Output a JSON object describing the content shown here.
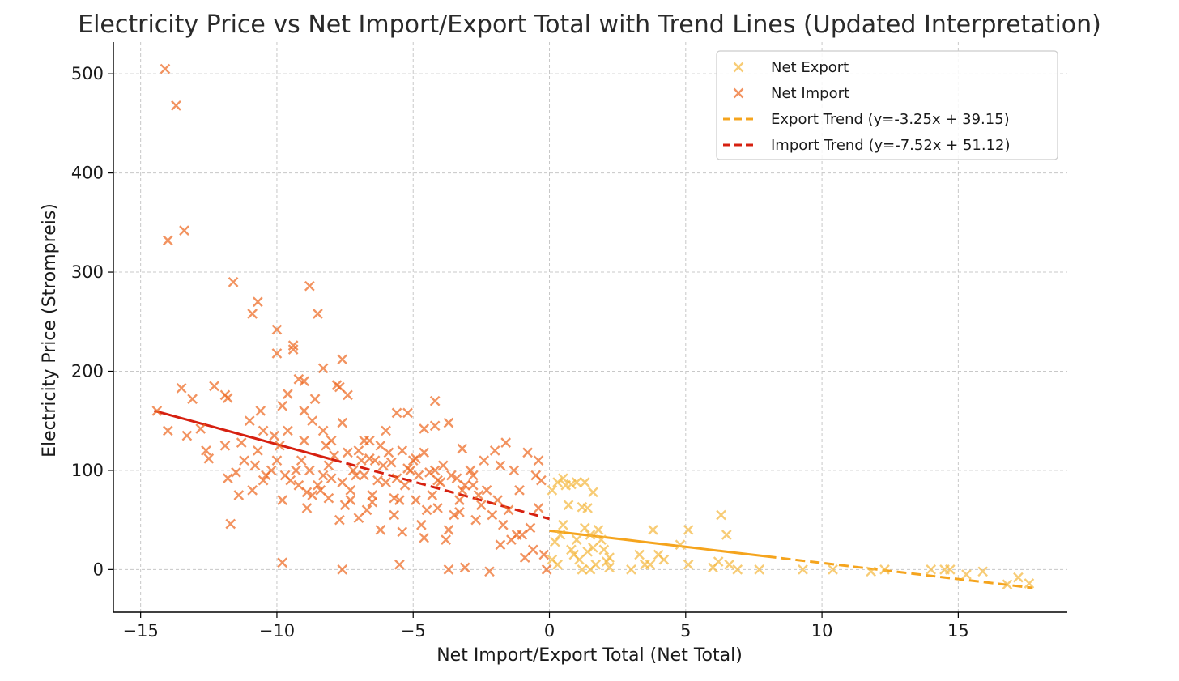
{
  "chart_data": {
    "type": "scatter",
    "title": "Electricity Price vs Net Import/Export Total with Trend Lines (Updated Interpretation)",
    "xlabel": "Net Import/Export Total (Net Total)",
    "ylabel": "Electricity Price (Strompreis)",
    "xlim": [
      -16,
      19
    ],
    "ylim": [
      -43,
      532
    ],
    "xticks": [
      -15,
      -10,
      -5,
      0,
      5,
      10,
      15
    ],
    "yticks": [
      0,
      100,
      200,
      300,
      400,
      500
    ],
    "xtick_labels": [
      "−15",
      "−10",
      "−5",
      "0",
      "5",
      "10",
      "15"
    ],
    "ytick_labels": [
      "0",
      "100",
      "200",
      "300",
      "400",
      "500"
    ],
    "grid": true,
    "legend_position": "top-right",
    "series": [
      {
        "name": "Net Export",
        "kind": "scatter",
        "marker": "x",
        "color": "#f5b942",
        "points": [
          [
            0.1,
            80
          ],
          [
            0.3,
            88
          ],
          [
            0.5,
            92
          ],
          [
            0.6,
            85
          ],
          [
            0.8,
            86
          ],
          [
            1.0,
            88
          ],
          [
            0.7,
            65
          ],
          [
            1.2,
            63
          ],
          [
            1.3,
            88
          ],
          [
            1.4,
            62
          ],
          [
            1.6,
            78
          ],
          [
            0.2,
            28
          ],
          [
            0.4,
            35
          ],
          [
            0.1,
            10
          ],
          [
            0.3,
            5
          ],
          [
            0.5,
            45
          ],
          [
            0.9,
            15
          ],
          [
            1.1,
            10
          ],
          [
            1.4,
            18
          ],
          [
            1.3,
            42
          ],
          [
            1.5,
            35
          ],
          [
            1.8,
            40
          ],
          [
            1.9,
            30
          ],
          [
            2.0,
            20
          ],
          [
            2.2,
            12
          ],
          [
            2.2,
            2
          ],
          [
            1.7,
            5
          ],
          [
            1.2,
            0
          ],
          [
            1.5,
            0
          ],
          [
            0.8,
            20
          ],
          [
            1.0,
            30
          ],
          [
            1.6,
            22
          ],
          [
            2.1,
            8
          ],
          [
            3.0,
            0
          ],
          [
            3.3,
            15
          ],
          [
            3.5,
            5
          ],
          [
            3.8,
            40
          ],
          [
            4.0,
            15
          ],
          [
            4.2,
            10
          ],
          [
            3.7,
            5
          ],
          [
            4.8,
            25
          ],
          [
            5.1,
            40
          ],
          [
            5.1,
            5
          ],
          [
            6.0,
            2
          ],
          [
            6.2,
            8
          ],
          [
            6.3,
            55
          ],
          [
            6.5,
            35
          ],
          [
            6.6,
            5
          ],
          [
            6.9,
            0
          ],
          [
            7.7,
            0
          ],
          [
            9.3,
            0
          ],
          [
            10.4,
            0
          ],
          [
            11.8,
            -2
          ],
          [
            12.3,
            0
          ],
          [
            14.0,
            0
          ],
          [
            14.5,
            0
          ],
          [
            14.7,
            0
          ],
          [
            15.3,
            -5
          ],
          [
            15.9,
            -2
          ],
          [
            16.8,
            -15
          ],
          [
            17.2,
            -8
          ],
          [
            17.6,
            -14
          ]
        ]
      },
      {
        "name": "Net Import",
        "kind": "scatter",
        "marker": "x",
        "color": "#ee6a24",
        "points": [
          [
            -14.1,
            505
          ],
          [
            -13.7,
            468
          ],
          [
            -14.0,
            332
          ],
          [
            -13.4,
            342
          ],
          [
            -11.6,
            290
          ],
          [
            -10.9,
            258
          ],
          [
            -10.7,
            270
          ],
          [
            -8.8,
            286
          ],
          [
            -8.5,
            258
          ],
          [
            -10.0,
            242
          ],
          [
            -9.4,
            226
          ],
          [
            -9.4,
            222
          ],
          [
            -10.0,
            218
          ],
          [
            -7.6,
            212
          ],
          [
            -8.3,
            203
          ],
          [
            -9.2,
            192
          ],
          [
            -9.0,
            190
          ],
          [
            -7.8,
            186
          ],
          [
            -7.7,
            184
          ],
          [
            -7.4,
            176
          ],
          [
            -4.2,
            170
          ],
          [
            -8.6,
            172
          ],
          [
            -9.6,
            177
          ],
          [
            -9.8,
            165
          ],
          [
            -14.4,
            160
          ],
          [
            -14.0,
            140
          ],
          [
            -13.5,
            183
          ],
          [
            -13.1,
            172
          ],
          [
            -12.3,
            185
          ],
          [
            -11.9,
            176
          ],
          [
            -11.8,
            173
          ],
          [
            -13.3,
            135
          ],
          [
            -12.8,
            142
          ],
          [
            -12.6,
            120
          ],
          [
            -12.5,
            112
          ],
          [
            -11.9,
            125
          ],
          [
            -11.5,
            98
          ],
          [
            -11.8,
            92
          ],
          [
            -11.3,
            128
          ],
          [
            -11.0,
            150
          ],
          [
            -10.6,
            160
          ],
          [
            -10.5,
            140
          ],
          [
            -10.1,
            135
          ],
          [
            -9.6,
            140
          ],
          [
            -9.0,
            160
          ],
          [
            -8.7,
            150
          ],
          [
            -8.3,
            140
          ],
          [
            -8.0,
            130
          ],
          [
            -7.6,
            148
          ],
          [
            -7.0,
            120
          ],
          [
            -6.6,
            130
          ],
          [
            -6.0,
            140
          ],
          [
            -5.6,
            158
          ],
          [
            -5.2,
            158
          ],
          [
            -4.6,
            142
          ],
          [
            -4.2,
            145
          ],
          [
            -3.7,
            148
          ],
          [
            -3.2,
            122
          ],
          [
            -2.8,
            95
          ],
          [
            -2.4,
            110
          ],
          [
            -2.0,
            120
          ],
          [
            -1.8,
            105
          ],
          [
            -1.6,
            128
          ],
          [
            -1.3,
            100
          ],
          [
            -0.8,
            118
          ],
          [
            -0.5,
            95
          ],
          [
            -0.3,
            90
          ],
          [
            -0.4,
            62
          ],
          [
            -0.7,
            42
          ],
          [
            -1.0,
            35
          ],
          [
            -1.4,
            30
          ],
          [
            -1.8,
            25
          ],
          [
            -2.2,
            -2
          ],
          [
            -3.1,
            2
          ],
          [
            -3.7,
            0
          ],
          [
            -5.5,
            5
          ],
          [
            -7.6,
            0
          ],
          [
            -9.8,
            7
          ],
          [
            -11.7,
            46
          ],
          [
            -11.4,
            75
          ],
          [
            -10.9,
            80
          ],
          [
            -10.5,
            90
          ],
          [
            -10.2,
            100
          ],
          [
            -10.0,
            110
          ],
          [
            -9.8,
            70
          ],
          [
            -9.5,
            90
          ],
          [
            -9.3,
            100
          ],
          [
            -9.1,
            110
          ],
          [
            -8.9,
            62
          ],
          [
            -8.7,
            75
          ],
          [
            -8.5,
            85
          ],
          [
            -8.3,
            95
          ],
          [
            -8.1,
            105
          ],
          [
            -7.9,
            115
          ],
          [
            -7.7,
            50
          ],
          [
            -7.5,
            65
          ],
          [
            -7.3,
            80
          ],
          [
            -7.1,
            95
          ],
          [
            -6.9,
            110
          ],
          [
            -6.7,
            60
          ],
          [
            -6.5,
            75
          ],
          [
            -6.3,
            90
          ],
          [
            -6.1,
            105
          ],
          [
            -5.9,
            118
          ],
          [
            -5.7,
            55
          ],
          [
            -5.5,
            70
          ],
          [
            -5.3,
            85
          ],
          [
            -5.1,
            100
          ],
          [
            -4.9,
            112
          ],
          [
            -4.7,
            45
          ],
          [
            -4.5,
            60
          ],
          [
            -4.3,
            75
          ],
          [
            -4.1,
            90
          ],
          [
            -3.9,
            105
          ],
          [
            -3.7,
            40
          ],
          [
            -3.5,
            55
          ],
          [
            -3.3,
            70
          ],
          [
            -3.1,
            85
          ],
          [
            -2.9,
            100
          ],
          [
            -2.7,
            50
          ],
          [
            -2.5,
            65
          ],
          [
            -2.3,
            80
          ],
          [
            -2.1,
            55
          ],
          [
            -1.9,
            70
          ],
          [
            -1.7,
            45
          ],
          [
            -1.5,
            60
          ],
          [
            -1.2,
            35
          ],
          [
            -0.9,
            12
          ],
          [
            -0.6,
            20
          ],
          [
            -0.2,
            15
          ],
          [
            -0.1,
            0
          ],
          [
            -0.4,
            110
          ],
          [
            -1.1,
            80
          ],
          [
            -9.7,
            95
          ],
          [
            -9.2,
            85
          ],
          [
            -8.8,
            100
          ],
          [
            -8.4,
            80
          ],
          [
            -8.0,
            92
          ],
          [
            -7.6,
            88
          ],
          [
            -7.2,
            100
          ],
          [
            -6.8,
            95
          ],
          [
            -6.4,
            110
          ],
          [
            -6.0,
            88
          ],
          [
            -5.6,
            92
          ],
          [
            -5.2,
            102
          ],
          [
            -4.8,
            95
          ],
          [
            -4.4,
            98
          ],
          [
            -4.0,
            88
          ],
          [
            -3.6,
            95
          ],
          [
            -3.2,
            80
          ],
          [
            -2.8,
            85
          ],
          [
            -10.8,
            105
          ],
          [
            -10.4,
            95
          ],
          [
            -11.2,
            110
          ],
          [
            -10.7,
            120
          ],
          [
            -9.9,
            125
          ],
          [
            -9.0,
            130
          ],
          [
            -8.2,
            125
          ],
          [
            -7.4,
            118
          ],
          [
            -6.6,
            112
          ],
          [
            -5.8,
            108
          ],
          [
            -5.0,
            110
          ],
          [
            -4.2,
            100
          ],
          [
            -3.4,
            92
          ],
          [
            -2.6,
            75
          ],
          [
            -8.9,
            78
          ],
          [
            -8.1,
            72
          ],
          [
            -7.3,
            70
          ],
          [
            -6.5,
            68
          ],
          [
            -5.7,
            72
          ],
          [
            -4.9,
            70
          ],
          [
            -4.1,
            62
          ],
          [
            -3.3,
            58
          ],
          [
            -6.2,
            40
          ],
          [
            -5.4,
            38
          ],
          [
            -4.6,
            32
          ],
          [
            -3.8,
            30
          ],
          [
            -7.0,
            52
          ],
          [
            -6.8,
            130
          ],
          [
            -6.2,
            125
          ],
          [
            -5.4,
            120
          ],
          [
            -4.6,
            118
          ]
        ]
      },
      {
        "name": "Export Trend (y=-3.25x + 39.15)",
        "kind": "line",
        "style": "dashed",
        "color": "#f5a41d",
        "x": [
          0.0,
          17.7
        ],
        "y": [
          39.15,
          -18.38
        ]
      },
      {
        "name": "Import Trend (y=-7.52x + 51.12)",
        "kind": "line",
        "style": "dashed",
        "color": "#d62010",
        "x": [
          -14.5,
          0.0
        ],
        "y": [
          160.16,
          51.12
        ]
      }
    ]
  }
}
